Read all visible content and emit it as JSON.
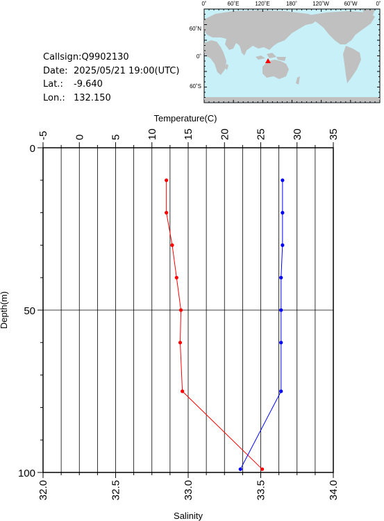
{
  "station": {
    "callsign_label": "Callsign:",
    "callsign": "Q9902130",
    "date_label": "Date:",
    "date": "2025/05/21 19:00(UTC)",
    "lat_label": "Lat.:",
    "lat": "-9.640",
    "lon_label": "Lon.:",
    "lon": "132.150"
  },
  "map": {
    "top_labels": [
      "0˚",
      "60˚E",
      "120˚E",
      "180˚",
      "120˚W",
      "60˚W",
      "0˚"
    ],
    "left_labels": [
      "60˚N",
      "0˚",
      "60˚S"
    ],
    "ocean_color": "#c8f0f8",
    "land_color": "#c0c0c0",
    "marker_color": "#ff0000"
  },
  "chart_data": {
    "type": "line",
    "ylabel": "Depth(m)",
    "y_ticks": [
      "0",
      "50",
      "100"
    ],
    "ylim": [
      0,
      100
    ],
    "y_inverted": true,
    "top_axis": {
      "label": "Temperature(C)",
      "ticks": [
        "-5",
        "0",
        "5",
        "10",
        "15",
        "20",
        "25",
        "30",
        "35"
      ],
      "range": [
        -5,
        35
      ]
    },
    "bottom_axis": {
      "label": "Salinity",
      "ticks": [
        "32.0",
        "32.5",
        "33.0",
        "33.5",
        "34.0"
      ],
      "range": [
        32.0,
        34.0
      ]
    },
    "grid": true,
    "series": [
      {
        "axis": "top",
        "color": "#ff0000",
        "depth": [
          10,
          20,
          30,
          40,
          50,
          60,
          75,
          99
        ],
        "values": [
          12.0,
          12.0,
          12.8,
          13.4,
          14.0,
          13.9,
          14.2,
          25.2
        ]
      },
      {
        "axis": "bottom",
        "color": "#0000ff",
        "depth": [
          10,
          20,
          30,
          40,
          50,
          60,
          75,
          99
        ],
        "values": [
          33.65,
          33.65,
          33.65,
          33.64,
          33.64,
          33.64,
          33.64,
          33.36
        ]
      }
    ]
  }
}
